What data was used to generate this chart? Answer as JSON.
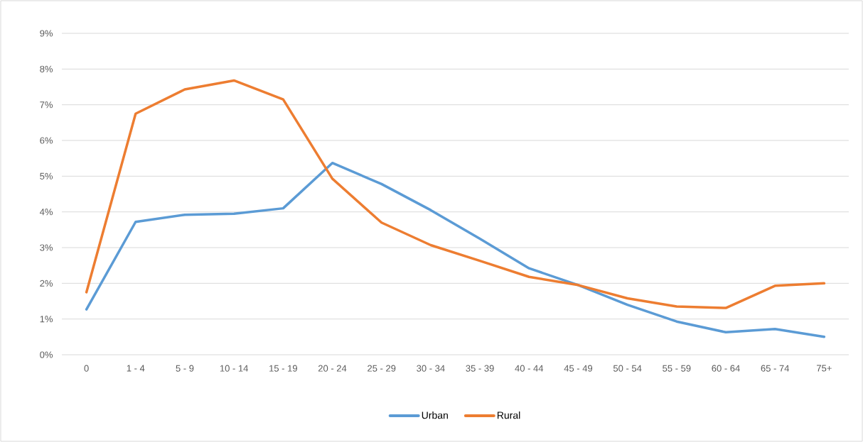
{
  "chart_data": {
    "type": "line",
    "categories": [
      "0",
      "1 - 4",
      "5 - 9",
      "10 - 14",
      "15 - 19",
      "20 - 24",
      "25 - 29",
      "30 - 34",
      "35 - 39",
      "40 - 44",
      "45 - 49",
      "50 - 54",
      "55 - 59",
      "60 - 64",
      "65 - 74",
      "75+"
    ],
    "series": [
      {
        "name": "Urban",
        "color": "#5b9bd5",
        "values": [
          1.27,
          3.72,
          3.92,
          3.95,
          4.1,
          5.37,
          4.78,
          4.05,
          3.25,
          2.42,
          1.95,
          1.4,
          0.93,
          0.63,
          0.72,
          0.5
        ]
      },
      {
        "name": "Rural",
        "color": "#ed7d31",
        "values": [
          1.75,
          6.75,
          7.43,
          7.68,
          7.15,
          4.93,
          3.7,
          3.07,
          2.63,
          2.18,
          1.95,
          1.58,
          1.35,
          1.31,
          1.93,
          2.0
        ]
      }
    ],
    "ylim": [
      0,
      9
    ],
    "yticks": [
      {
        "value": 0,
        "label": "0%"
      },
      {
        "value": 1,
        "label": "1%"
      },
      {
        "value": 2,
        "label": "2%"
      },
      {
        "value": 3,
        "label": "3%"
      },
      {
        "value": 4,
        "label": "4%"
      },
      {
        "value": 5,
        "label": "5%"
      },
      {
        "value": 6,
        "label": "6%"
      },
      {
        "value": 7,
        "label": "7%"
      },
      {
        "value": 8,
        "label": "8%"
      },
      {
        "value": 9,
        "label": "9%"
      }
    ],
    "grid": "y",
    "legend": "bottom",
    "marker": "none",
    "line_style": "solid"
  }
}
